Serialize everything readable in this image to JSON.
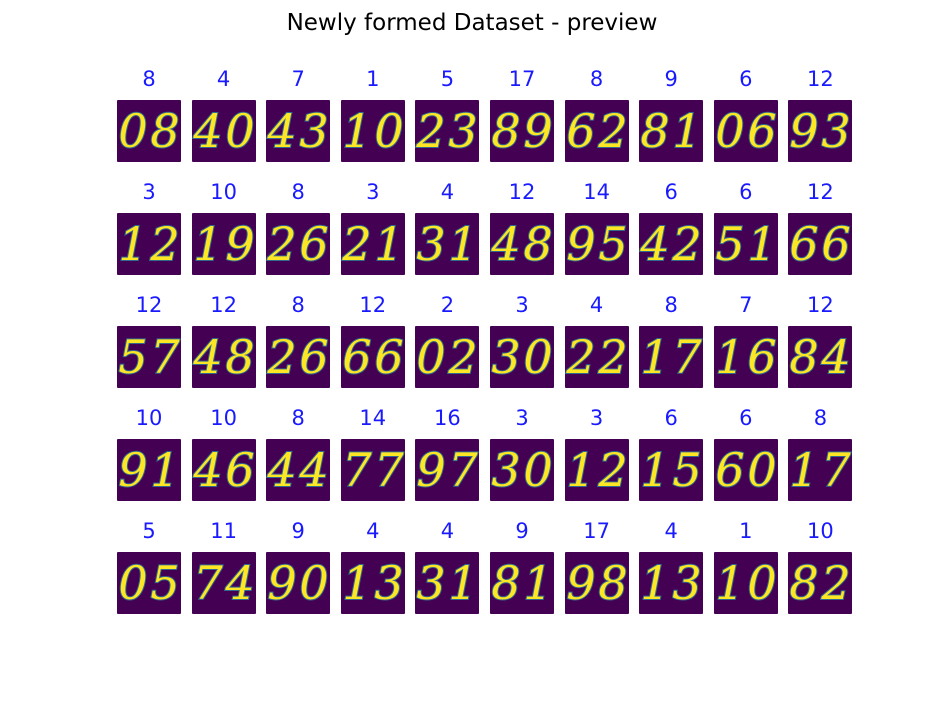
{
  "title": "Newly formed Dataset - preview",
  "colors": {
    "label": "#1a1aff",
    "background": "#440154",
    "stroke_high": "#fde725",
    "stroke_mid": "#35b779",
    "stroke_low": "#31688e"
  },
  "chart_data": {
    "type": "image-grid",
    "rows": 5,
    "cols": 10,
    "cells": [
      {
        "label": "8",
        "digits": "08"
      },
      {
        "label": "4",
        "digits": "40"
      },
      {
        "label": "7",
        "digits": "43"
      },
      {
        "label": "1",
        "digits": "10"
      },
      {
        "label": "5",
        "digits": "23"
      },
      {
        "label": "17",
        "digits": "89"
      },
      {
        "label": "8",
        "digits": "62"
      },
      {
        "label": "9",
        "digits": "81"
      },
      {
        "label": "6",
        "digits": "06"
      },
      {
        "label": "12",
        "digits": "93"
      },
      {
        "label": "3",
        "digits": "12"
      },
      {
        "label": "10",
        "digits": "19"
      },
      {
        "label": "8",
        "digits": "26"
      },
      {
        "label": "3",
        "digits": "21"
      },
      {
        "label": "4",
        "digits": "31"
      },
      {
        "label": "12",
        "digits": "48"
      },
      {
        "label": "14",
        "digits": "95"
      },
      {
        "label": "6",
        "digits": "42"
      },
      {
        "label": "6",
        "digits": "51"
      },
      {
        "label": "12",
        "digits": "66"
      },
      {
        "label": "12",
        "digits": "57"
      },
      {
        "label": "12",
        "digits": "48"
      },
      {
        "label": "8",
        "digits": "26"
      },
      {
        "label": "12",
        "digits": "66"
      },
      {
        "label": "2",
        "digits": "02"
      },
      {
        "label": "3",
        "digits": "30"
      },
      {
        "label": "4",
        "digits": "22"
      },
      {
        "label": "8",
        "digits": "17"
      },
      {
        "label": "7",
        "digits": "16"
      },
      {
        "label": "12",
        "digits": "84"
      },
      {
        "label": "10",
        "digits": "91"
      },
      {
        "label": "10",
        "digits": "46"
      },
      {
        "label": "8",
        "digits": "44"
      },
      {
        "label": "14",
        "digits": "77"
      },
      {
        "label": "16",
        "digits": "97"
      },
      {
        "label": "3",
        "digits": "30"
      },
      {
        "label": "3",
        "digits": "12"
      },
      {
        "label": "6",
        "digits": "15"
      },
      {
        "label": "6",
        "digits": "60"
      },
      {
        "label": "8",
        "digits": "17"
      },
      {
        "label": "5",
        "digits": "05"
      },
      {
        "label": "11",
        "digits": "74"
      },
      {
        "label": "9",
        "digits": "90"
      },
      {
        "label": "4",
        "digits": "13"
      },
      {
        "label": "4",
        "digits": "31"
      },
      {
        "label": "9",
        "digits": "81"
      },
      {
        "label": "17",
        "digits": "98"
      },
      {
        "label": "4",
        "digits": "13"
      },
      {
        "label": "1",
        "digits": "10"
      },
      {
        "label": "10",
        "digits": "82"
      }
    ]
  }
}
